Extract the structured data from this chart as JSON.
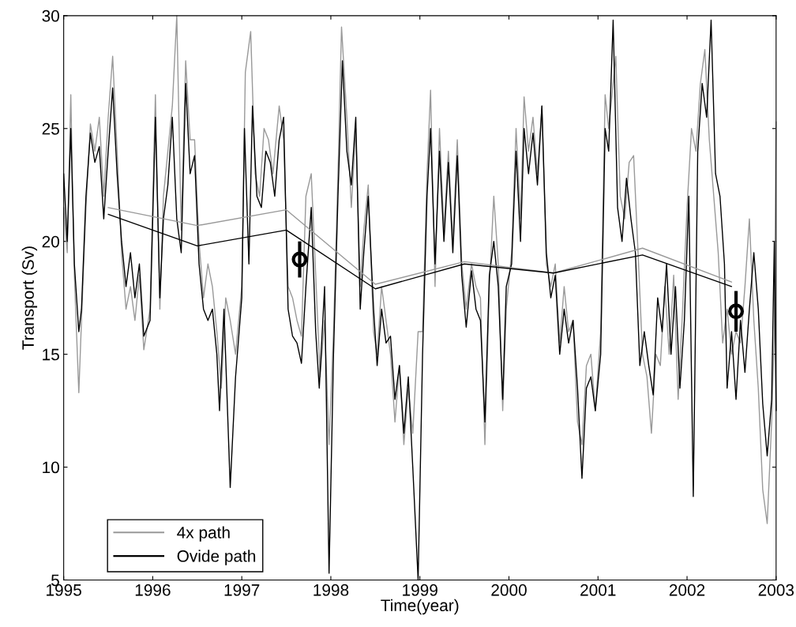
{
  "chart_data": {
    "type": "line",
    "xlabel": "Time(year)",
    "ylabel": "Transport (Sv)",
    "xlim": [
      1995,
      2003
    ],
    "ylim": [
      5,
      30
    ],
    "xticks": [
      1995,
      1996,
      1997,
      1998,
      1999,
      2000,
      2001,
      2002,
      2003
    ],
    "yticks": [
      5,
      10,
      15,
      20,
      25,
      30
    ],
    "grid": false,
    "legend": "bottom left",
    "marker": "none",
    "line_style": "solid",
    "series": [
      {
        "name": "4x path",
        "color": "#999999",
        "x": [
          1995.0,
          1995.04,
          1995.08,
          1995.12,
          1995.17,
          1995.2,
          1995.25,
          1995.3,
          1995.35,
          1995.4,
          1995.45,
          1995.5,
          1995.55,
          1995.6,
          1995.65,
          1995.7,
          1995.75,
          1995.8,
          1995.85,
          1995.9,
          1995.97,
          1996.03,
          1996.08,
          1996.12,
          1996.17,
          1996.22,
          1996.27,
          1996.32,
          1996.37,
          1996.42,
          1996.47,
          1996.52,
          1996.57,
          1996.62,
          1996.67,
          1996.72,
          1996.77,
          1996.82,
          1996.87,
          1996.93,
          1997.0,
          1997.04,
          1997.1,
          1997.15,
          1997.2,
          1997.25,
          1997.3,
          1997.35,
          1997.42,
          1997.47,
          1997.52,
          1997.57,
          1997.62,
          1997.67,
          1997.72,
          1997.78,
          1997.83,
          1997.88,
          1997.93,
          1997.98,
          1998.03,
          1998.08,
          1998.12,
          1998.18,
          1998.23,
          1998.28,
          1998.33,
          1998.37,
          1998.42,
          1998.48,
          1998.52,
          1998.57,
          1998.62,
          1998.67,
          1998.72,
          1998.77,
          1998.82,
          1998.87,
          1998.92,
          1998.98,
          1999.03,
          1999.08,
          1999.12,
          1999.17,
          1999.22,
          1999.27,
          1999.32,
          1999.37,
          1999.42,
          1999.47,
          1999.52,
          1999.58,
          1999.63,
          1999.68,
          1999.73,
          1999.78,
          1999.83,
          1999.88,
          1999.93,
          1999.97,
          2000.03,
          2000.08,
          2000.13,
          2000.17,
          2000.22,
          2000.27,
          2000.32,
          2000.37,
          2000.42,
          2000.47,
          2000.52,
          2000.57,
          2000.62,
          2000.67,
          2000.72,
          2000.77,
          2000.82,
          2000.87,
          2000.92,
          2000.97,
          2001.03,
          2001.08,
          2001.12,
          2001.2,
          2001.25,
          2001.3,
          2001.35,
          2001.4,
          2001.45,
          2001.5,
          2001.55,
          2001.6,
          2001.65,
          2001.7,
          2001.75,
          2001.8,
          2001.85,
          2001.9,
          2001.95,
          2002.0,
          2002.05,
          2002.1,
          2002.15,
          2002.2,
          2002.25,
          2002.3,
          2002.35,
          2002.4,
          2002.45,
          2002.5,
          2002.55,
          2002.6,
          2002.65,
          2002.7,
          2002.75,
          2002.8,
          2002.85,
          2002.9,
          2002.95,
          2002.98,
          2003.0
        ],
        "values": [
          21.5,
          19.5,
          26.5,
          18.5,
          13.3,
          16.5,
          21.5,
          25.2,
          24.0,
          25.5,
          22.0,
          25.5,
          28.2,
          24.0,
          19.5,
          17.0,
          18.0,
          16.5,
          18.5,
          15.2,
          17.0,
          26.5,
          17.0,
          22.0,
          24.0,
          26.0,
          30.0,
          20.5,
          28.0,
          24.5,
          24.5,
          20.0,
          17.5,
          19.0,
          18.0,
          16.0,
          13.5,
          17.5,
          16.5,
          15.0,
          18.0,
          27.5,
          29.3,
          23.0,
          22.0,
          25.0,
          24.5,
          23.0,
          26.0,
          24.5,
          18.0,
          17.5,
          16.5,
          15.8,
          22.0,
          23.0,
          18.5,
          14.0,
          16.5,
          11.0,
          16.0,
          23.0,
          29.5,
          25.5,
          21.5,
          25.0,
          18.0,
          20.5,
          22.5,
          16.0,
          15.0,
          18.0,
          16.5,
          15.0,
          12.0,
          14.5,
          11.0,
          13.5,
          11.5,
          16.0,
          16.0,
          23.0,
          26.7,
          18.0,
          25.0,
          20.5,
          24.0,
          20.0,
          24.5,
          19.0,
          17.0,
          19.0,
          18.0,
          17.5,
          11.0,
          18.0,
          22.0,
          19.0,
          12.5,
          17.0,
          19.5,
          25.0,
          21.0,
          26.4,
          24.0,
          25.5,
          23.0,
          26.0,
          19.0,
          18.0,
          19.0,
          15.5,
          18.0,
          16.0,
          16.5,
          12.0,
          11.0,
          14.5,
          15.0,
          12.5,
          16.0,
          26.5,
          25.0,
          28.2,
          22.0,
          21.0,
          23.5,
          23.8,
          19.5,
          15.0,
          14.0,
          11.5,
          15.0,
          14.5,
          18.0,
          15.0,
          18.5,
          13.0,
          17.0,
          21.5,
          25.0,
          24.0,
          27.0,
          28.5,
          24.5,
          22.0,
          19.5,
          15.5,
          17.0,
          15.0,
          16.0,
          15.5,
          18.0,
          21.0,
          16.5,
          13.5,
          9.0,
          7.5,
          12.0,
          16.0,
          25.3
        ]
      },
      {
        "name": "Ovide path",
        "color": "#000000",
        "x": [
          1995.0,
          1995.04,
          1995.08,
          1995.12,
          1995.17,
          1995.2,
          1995.25,
          1995.3,
          1995.35,
          1995.4,
          1995.45,
          1995.5,
          1995.55,
          1995.6,
          1995.65,
          1995.7,
          1995.75,
          1995.8,
          1995.85,
          1995.9,
          1995.97,
          1996.03,
          1996.08,
          1996.12,
          1996.17,
          1996.22,
          1996.27,
          1996.32,
          1996.37,
          1996.42,
          1996.47,
          1996.52,
          1996.57,
          1996.62,
          1996.67,
          1996.72,
          1996.75,
          1996.8,
          1996.87,
          1996.93,
          1997.0,
          1997.03,
          1997.08,
          1997.12,
          1997.17,
          1997.22,
          1997.27,
          1997.32,
          1997.37,
          1997.42,
          1997.47,
          1997.52,
          1997.57,
          1997.62,
          1997.67,
          1997.72,
          1997.78,
          1997.83,
          1997.87,
          1997.93,
          1997.98,
          1998.03,
          1998.08,
          1998.13,
          1998.18,
          1998.23,
          1998.28,
          1998.33,
          1998.37,
          1998.42,
          1998.48,
          1998.52,
          1998.57,
          1998.62,
          1998.67,
          1998.72,
          1998.77,
          1998.82,
          1998.87,
          1998.92,
          1998.98,
          1999.03,
          1999.08,
          1999.12,
          1999.17,
          1999.22,
          1999.27,
          1999.32,
          1999.37,
          1999.42,
          1999.47,
          1999.52,
          1999.58,
          1999.63,
          1999.68,
          1999.73,
          1999.78,
          1999.83,
          1999.88,
          1999.93,
          1999.97,
          2000.03,
          2000.08,
          2000.13,
          2000.17,
          2000.22,
          2000.27,
          2000.32,
          2000.37,
          2000.42,
          2000.47,
          2000.52,
          2000.57,
          2000.62,
          2000.67,
          2000.72,
          2000.77,
          2000.82,
          2000.87,
          2000.92,
          2000.97,
          2001.03,
          2001.08,
          2001.12,
          2001.17,
          2001.22,
          2001.27,
          2001.32,
          2001.37,
          2001.42,
          2001.47,
          2001.52,
          2001.57,
          2001.62,
          2001.67,
          2001.72,
          2001.77,
          2001.82,
          2001.87,
          2001.92,
          2001.97,
          2002.02,
          2002.07,
          2002.12,
          2002.17,
          2002.22,
          2002.27,
          2002.32,
          2002.37,
          2002.42,
          2002.45,
          2002.5,
          2002.55,
          2002.6,
          2002.65,
          2002.7,
          2002.75,
          2002.8,
          2002.85,
          2002.9,
          2002.95,
          2002.98,
          2003.0
        ],
        "values": [
          23.0,
          20.0,
          25.0,
          19.0,
          16.0,
          17.0,
          22.0,
          24.8,
          23.5,
          24.2,
          21.0,
          24.0,
          26.8,
          23.0,
          20.0,
          18.0,
          19.5,
          17.5,
          19.0,
          15.8,
          16.5,
          25.5,
          17.5,
          21.0,
          22.5,
          25.5,
          21.0,
          19.5,
          27.0,
          23.0,
          23.8,
          19.0,
          17.0,
          16.5,
          17.0,
          15.0,
          12.5,
          17.0,
          9.1,
          14.0,
          17.5,
          25.0,
          19.0,
          26.0,
          22.0,
          21.5,
          24.0,
          23.5,
          22.0,
          24.5,
          25.5,
          17.0,
          15.8,
          15.5,
          14.6,
          18.0,
          21.5,
          16.0,
          13.5,
          18.0,
          5.3,
          15.0,
          22.0,
          28.0,
          24.0,
          22.5,
          25.5,
          17.0,
          19.5,
          22.0,
          17.0,
          14.5,
          17.0,
          15.5,
          15.8,
          13.0,
          14.5,
          11.5,
          14.0,
          10.0,
          5.0,
          15.0,
          22.0,
          25.0,
          19.0,
          24.0,
          20.0,
          23.5,
          19.5,
          23.8,
          18.5,
          16.2,
          18.7,
          17.0,
          16.5,
          12.0,
          18.5,
          20.0,
          18.0,
          13.0,
          18.0,
          19.0,
          24.0,
          20.0,
          25.0,
          23.0,
          24.8,
          22.5,
          26.0,
          19.5,
          17.5,
          18.5,
          15.0,
          17.0,
          15.5,
          16.5,
          13.5,
          9.5,
          13.5,
          14.0,
          12.5,
          15.0,
          25.0,
          24.0,
          29.8,
          21.5,
          20.0,
          22.8,
          21.0,
          19.5,
          14.5,
          16.0,
          14.5,
          13.2,
          17.5,
          16.0,
          19.0,
          15.0,
          18.0,
          13.5,
          16.5,
          22.0,
          8.7,
          24.0,
          27.0,
          25.5,
          29.8,
          23.0,
          22.0,
          19.0,
          13.5,
          16.0,
          13.0,
          16.5,
          14.2,
          17.0,
          19.5,
          17.0,
          12.8,
          10.5,
          13.0,
          20.0,
          12.5
        ]
      },
      {
        "color": "#999999",
        "x": [
          1995.5,
          1996.5,
          1997.5,
          1998.5,
          1999.5,
          2000.5,
          2001.5,
          2002.5
        ],
        "values": [
          21.5,
          20.7,
          21.4,
          18.1,
          19.1,
          18.6,
          19.7,
          18.2
        ]
      },
      {
        "color": "#000000",
        "x": [
          1995.5,
          1996.5,
          1997.5,
          1998.5,
          1999.5,
          2000.5,
          2001.5,
          2002.5
        ],
        "values": [
          21.2,
          19.8,
          20.5,
          17.9,
          19.0,
          18.6,
          19.4,
          18.0
        ]
      },
      {
        "type": "scatter",
        "marker": "circle",
        "color": "#000000",
        "x": [
          1997.65,
          2002.55
        ],
        "values": [
          19.2,
          16.9
        ],
        "errors": [
          0.8,
          0.9
        ]
      }
    ]
  }
}
